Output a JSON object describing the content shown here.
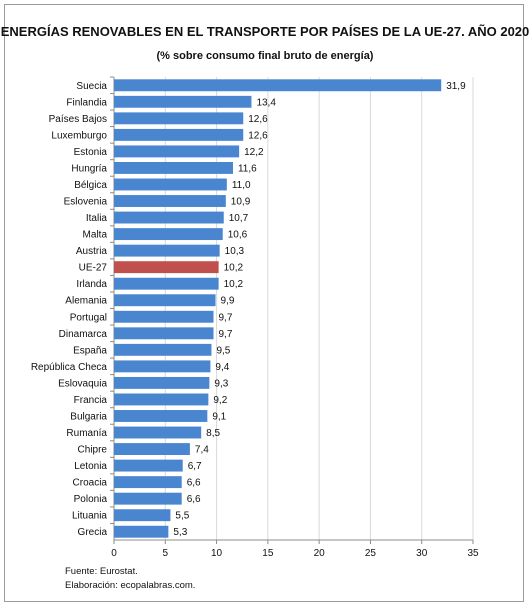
{
  "chart_data": {
    "type": "bar",
    "orientation": "horizontal",
    "title": "ENERGÍAS RENOVABLES EN EL TRANSPORTE POR PAÍSES DE LA UE-27. AÑO 2020",
    "subtitle": "(% sobre consumo final bruto de energía)",
    "categories": [
      "Suecia",
      "Finlandia",
      "Países Bajos",
      "Luxemburgo",
      "Estonia",
      "Hungría",
      "Bélgica",
      "Eslovenia",
      "Italia",
      "Malta",
      "Austria",
      "UE-27",
      "Irlanda",
      "Alemania",
      "Portugal",
      "Dinamarca",
      "España",
      "República Checa",
      "Eslovaquia",
      "Francia",
      "Bulgaria",
      "Rumanía",
      "Chipre",
      "Letonia",
      "Croacia",
      "Polonia",
      "Lituania",
      "Grecia"
    ],
    "values": [
      31.9,
      13.4,
      12.6,
      12.6,
      12.2,
      11.6,
      11.0,
      10.9,
      10.7,
      10.6,
      10.3,
      10.2,
      10.2,
      9.9,
      9.7,
      9.7,
      9.5,
      9.4,
      9.3,
      9.2,
      9.1,
      8.5,
      7.4,
      6.7,
      6.6,
      6.6,
      5.5,
      5.3
    ],
    "value_labels": [
      "31,9",
      "13,4",
      "12,6",
      "12,6",
      "12,2",
      "11,6",
      "11,0",
      "10,9",
      "10,7",
      "10,6",
      "10,3",
      "10,2",
      "10,2",
      "9,9",
      "9,7",
      "9,7",
      "9,5",
      "9,4",
      "9,3",
      "9,2",
      "9,1",
      "8,5",
      "7,4",
      "6,7",
      "6,6",
      "6,6",
      "5,5",
      "5,3"
    ],
    "xlim": [
      0,
      35
    ],
    "xticks": [
      0,
      5,
      10,
      15,
      20,
      25,
      30,
      35
    ],
    "grid": true,
    "bar_color": "#4a86d0",
    "highlight_category": "UE-27",
    "highlight_color": "#c0504d"
  },
  "footer": {
    "source": "Fuente: Eurostat.",
    "credit": "Elaboración: ecopalabras.com."
  }
}
